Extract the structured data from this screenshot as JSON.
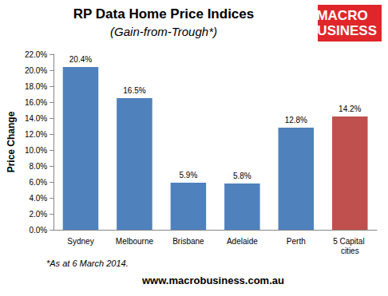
{
  "chart_data": {
    "type": "bar",
    "title": "RP Data Home Price Indices",
    "subtitle": "(Gain-from-Trough*)",
    "y_label": "Price Change",
    "categories": [
      "Sydney",
      "Melbourne",
      "Brisbane",
      "Adelaide",
      "Perth",
      "5 Capital cities"
    ],
    "values": [
      20.4,
      16.5,
      5.9,
      5.8,
      12.8,
      14.2
    ],
    "value_labels": [
      "20.4%",
      "16.5%",
      "5.9%",
      "5.8%",
      "12.8%",
      "14.2%"
    ],
    "colors": [
      "#4f81bd",
      "#4f81bd",
      "#4f81bd",
      "#4f81bd",
      "#4f81bd",
      "#c0504d"
    ],
    "data_labels": true,
    "grid": false,
    "ylim": [
      0,
      22
    ],
    "yticks": [
      {
        "value": 0,
        "label": "0.0%"
      },
      {
        "value": 2,
        "label": "2.0%"
      },
      {
        "value": 4,
        "label": "4.0%"
      },
      {
        "value": 6,
        "label": "6.0%"
      },
      {
        "value": 8,
        "label": "8.0%"
      },
      {
        "value": 10,
        "label": "10.0%"
      },
      {
        "value": 12,
        "label": "12.0%"
      },
      {
        "value": 14,
        "label": "14.0%"
      },
      {
        "value": 16,
        "label": "16.0%"
      },
      {
        "value": 18,
        "label": "18.0%"
      },
      {
        "value": 20,
        "label": "20.0%"
      },
      {
        "value": 22,
        "label": "22.0%"
      }
    ],
    "footnote": "*As at 6 March 2014.",
    "source": "www.macrobusiness.com.au",
    "logo_text": [
      "MACRO",
      "BUSINESS"
    ]
  }
}
